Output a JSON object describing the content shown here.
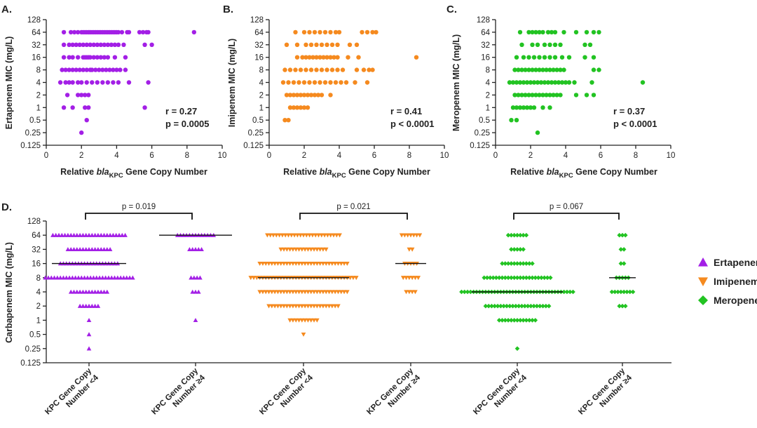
{
  "colors": {
    "ertapenem": "#A31FE6",
    "imipenem": "#F58A1F",
    "meropenem": "#22C322"
  },
  "y_ticks": [
    "0.125",
    "0.25",
    "0.5",
    "1",
    "2",
    "4",
    "8",
    "16",
    "32",
    "64",
    "128"
  ],
  "chart_data": [
    {
      "panel": "A.",
      "type": "scatter",
      "antibiotic": "ertapenem",
      "ylabel": "Ertapenem MIC (mg/L)",
      "xlabel_parts": [
        "Relative ",
        "bla",
        "KPC",
        " Gene Copy Number"
      ],
      "xlim": [
        0,
        10
      ],
      "x_ticks": [
        "0",
        "2",
        "4",
        "6",
        "8",
        "10"
      ],
      "ylim": [
        0.125,
        128
      ],
      "yscale": "log2",
      "stats": [
        "r = 0.27",
        "p = 0.0005"
      ],
      "rows": [
        {
          "y": 64,
          "x": [
            1.0,
            1.4,
            1.6,
            1.8,
            2.0,
            2.1,
            2.2,
            2.3,
            2.4,
            2.5,
            2.6,
            2.7,
            2.8,
            2.9,
            3.0,
            3.1,
            3.2,
            3.3,
            3.4,
            3.5,
            3.6,
            3.7,
            3.8,
            3.9,
            4.0,
            4.1,
            4.3,
            4.6,
            4.7,
            5.3,
            5.5,
            5.7,
            5.8,
            8.4
          ]
        },
        {
          "y": 32,
          "x": [
            1.0,
            1.3,
            1.5,
            1.7,
            1.9,
            2.1,
            2.3,
            2.5,
            2.7,
            2.9,
            3.1,
            3.3,
            3.5,
            3.7,
            3.9,
            4.1,
            4.4,
            5.6,
            6.0
          ]
        },
        {
          "y": 16,
          "x": [
            1.0,
            1.3,
            1.5,
            1.8,
            2.1,
            2.2,
            2.3,
            2.4,
            2.5,
            2.7,
            2.9,
            3.1,
            3.3,
            3.5,
            3.9,
            4.5
          ]
        },
        {
          "y": 8,
          "x": [
            0.9,
            1.1,
            1.3,
            1.5,
            1.7,
            1.9,
            2.1,
            2.3,
            2.5,
            2.6,
            2.8,
            3.0,
            3.2,
            3.4,
            3.6,
            3.8,
            4.0,
            4.2,
            4.5
          ]
        },
        {
          "y": 4,
          "x": [
            0.8,
            1.1,
            1.3,
            1.5,
            1.8,
            2.0,
            2.3,
            2.6,
            2.9,
            3.2,
            3.5,
            3.8,
            4.1,
            4.7,
            5.8
          ]
        },
        {
          "y": 2,
          "x": [
            1.2,
            1.8,
            2.0,
            2.2,
            2.4
          ]
        },
        {
          "y": 1,
          "x": [
            1.0,
            1.5,
            2.2,
            2.4,
            5.6
          ]
        },
        {
          "y": 0.5,
          "x": [
            2.3
          ]
        },
        {
          "y": 0.25,
          "x": [
            2.0
          ]
        }
      ]
    },
    {
      "panel": "B.",
      "type": "scatter",
      "antibiotic": "imipenem",
      "ylabel": "Imipenem MIC (mg/L)",
      "xlabel_parts": [
        "Relative ",
        "bla",
        "KPC",
        " Gene Copy Number"
      ],
      "xlim": [
        0,
        10
      ],
      "x_ticks": [
        "0",
        "2",
        "4",
        "6",
        "8",
        "10"
      ],
      "ylim": [
        0.125,
        128
      ],
      "yscale": "log2",
      "stats": [
        "r = 0.41",
        "p < 0.0001"
      ],
      "rows": [
        {
          "y": 64,
          "x": [
            1.5,
            2.0,
            2.3,
            2.6,
            2.9,
            3.2,
            3.5,
            3.8,
            4.0,
            5.3,
            5.6,
            5.9,
            6.1
          ]
        },
        {
          "y": 32,
          "x": [
            1.0,
            1.6,
            2.1,
            2.4,
            2.7,
            3.0,
            3.3,
            3.6,
            3.9,
            4.6,
            5.0
          ]
        },
        {
          "y": 16,
          "x": [
            1.6,
            1.9,
            2.1,
            2.3,
            2.5,
            2.7,
            2.9,
            3.1,
            3.3,
            3.5,
            3.7,
            3.9,
            4.5,
            5.1,
            8.4
          ]
        },
        {
          "y": 8,
          "x": [
            0.9,
            1.2,
            1.5,
            1.8,
            2.1,
            2.4,
            2.7,
            3.0,
            3.3,
            3.6,
            3.9,
            4.2,
            5.0,
            5.4,
            5.7,
            5.9
          ]
        },
        {
          "y": 4,
          "x": [
            0.8,
            1.1,
            1.4,
            1.7,
            2.0,
            2.3,
            2.6,
            2.9,
            3.2,
            3.5,
            3.8,
            4.1,
            4.4,
            4.9,
            5.6
          ]
        },
        {
          "y": 2,
          "x": [
            1.0,
            1.2,
            1.4,
            1.6,
            1.8,
            2.0,
            2.2,
            2.4,
            2.6,
            2.8,
            3.0,
            3.5
          ]
        },
        {
          "y": 1,
          "x": [
            1.2,
            1.4,
            1.6,
            1.8,
            2.0,
            2.2
          ]
        },
        {
          "y": 0.5,
          "x": [
            0.9,
            1.1
          ]
        }
      ]
    },
    {
      "panel": "C.",
      "type": "scatter",
      "antibiotic": "meropenem",
      "ylabel": "Meropenem MIC (mg/L)",
      "xlabel_parts": [
        "Relative ",
        "bla",
        "KPC",
        " Gene Copy Number"
      ],
      "xlim": [
        0,
        10
      ],
      "x_ticks": [
        "0",
        "2",
        "4",
        "6",
        "8",
        "10"
      ],
      "ylim": [
        0.125,
        128
      ],
      "yscale": "log2",
      "stats": [
        "r = 0.37",
        "p < 0.0001"
      ],
      "rows": [
        {
          "y": 64,
          "x": [
            1.4,
            1.9,
            2.1,
            2.3,
            2.5,
            2.7,
            3.0,
            3.2,
            3.4,
            3.9,
            4.6,
            5.2,
            5.6,
            5.9
          ]
        },
        {
          "y": 32,
          "x": [
            1.5,
            2.1,
            2.4,
            2.8,
            3.1,
            3.4,
            3.7,
            5.1,
            5.4
          ]
        },
        {
          "y": 16,
          "x": [
            1.2,
            1.6,
            1.9,
            2.2,
            2.5,
            2.8,
            3.1,
            3.4,
            3.8,
            4.2,
            5.1,
            5.6
          ]
        },
        {
          "y": 8,
          "x": [
            1.1,
            1.3,
            1.5,
            1.7,
            1.9,
            2.1,
            2.3,
            2.5,
            2.7,
            2.9,
            3.1,
            3.3,
            3.5,
            3.7,
            3.9,
            5.6,
            5.9
          ]
        },
        {
          "y": 4,
          "x": [
            0.8,
            1.0,
            1.2,
            1.4,
            1.6,
            1.8,
            2.0,
            2.2,
            2.4,
            2.6,
            2.8,
            3.0,
            3.2,
            3.4,
            3.6,
            3.8,
            4.0,
            4.2,
            4.5,
            5.5,
            8.4
          ]
        },
        {
          "y": 2,
          "x": [
            1.1,
            1.3,
            1.5,
            1.7,
            1.9,
            2.1,
            2.3,
            2.5,
            2.7,
            2.9,
            3.1,
            3.3,
            3.5,
            3.7,
            4.6,
            5.2,
            5.6
          ]
        },
        {
          "y": 1,
          "x": [
            1.0,
            1.2,
            1.4,
            1.6,
            1.8,
            2.0,
            2.2,
            2.7,
            3.1
          ]
        },
        {
          "y": 0.5,
          "x": [
            0.9,
            1.2
          ]
        },
        {
          "y": 0.25,
          "x": [
            2.4
          ]
        }
      ]
    },
    {
      "panel": "D.",
      "type": "scatter",
      "subtype": "categorical-dot-plot",
      "ylabel": "Carbapenem MIC (mg/L)",
      "ylim": [
        0.125,
        128
      ],
      "yscale": "log2",
      "categories": [
        {
          "label": [
            "KPC Gene Copy",
            "Number <4"
          ],
          "antibiotic": "ertapenem",
          "median": 16,
          "counts": {
            "64": 25,
            "32": 15,
            "16": 20,
            "8": 30,
            "4": 13,
            "2": 7,
            "1": 1,
            "0.5": 1,
            "0.25": 1
          }
        },
        {
          "label": [
            "KPC Gene Copy",
            "Number ≥4"
          ],
          "antibiotic": "ertapenem",
          "median": 64,
          "counts": {
            "64": 13,
            "32": 5,
            "8": 4,
            "4": 3,
            "1": 1
          }
        },
        {
          "label": [
            "KPC Gene Copy",
            "Number <4"
          ],
          "antibiotic": "imipenem",
          "median": 8,
          "counts": {
            "64": 25,
            "32": 16,
            "16": 30,
            "8": 36,
            "4": 30,
            "2": 24,
            "1": 10,
            "0.5": 1
          }
        },
        {
          "label": [
            "KPC Gene Copy",
            "Number ≥4"
          ],
          "antibiotic": "imipenem",
          "median": 16,
          "counts": {
            "64": 7,
            "32": 2,
            "16": 5,
            "8": 6,
            "4": 4
          }
        },
        {
          "label": [
            "KPC Gene Copy",
            "Number <4"
          ],
          "antibiotic": "meropenem",
          "median": 4,
          "counts": {
            "64": 7,
            "32": 5,
            "16": 11,
            "8": 23,
            "4": 38,
            "2": 22,
            "1": 13,
            "0.25": 1
          }
        },
        {
          "label": [
            "KPC Gene Copy",
            "Number ≥4"
          ],
          "antibiotic": "meropenem",
          "median": 8,
          "counts": {
            "64": 3,
            "32": 2,
            "16": 2,
            "8": 5,
            "4": 8,
            "2": 3
          }
        }
      ],
      "comparisons": [
        {
          "between": [
            0,
            1
          ],
          "label": "p = 0.019"
        },
        {
          "between": [
            2,
            3
          ],
          "label": "p = 0.021"
        },
        {
          "between": [
            4,
            5
          ],
          "label": "p = 0.067"
        }
      ],
      "legend": {
        "placement": "right",
        "entries": [
          {
            "name": "Ertapenem",
            "antibiotic": "ertapenem",
            "marker": "triangle-up"
          },
          {
            "name": "Imipenem",
            "antibiotic": "imipenem",
            "marker": "triangle-down"
          },
          {
            "name": "Meropenem",
            "antibiotic": "meropenem",
            "marker": "diamond"
          }
        ]
      }
    }
  ]
}
